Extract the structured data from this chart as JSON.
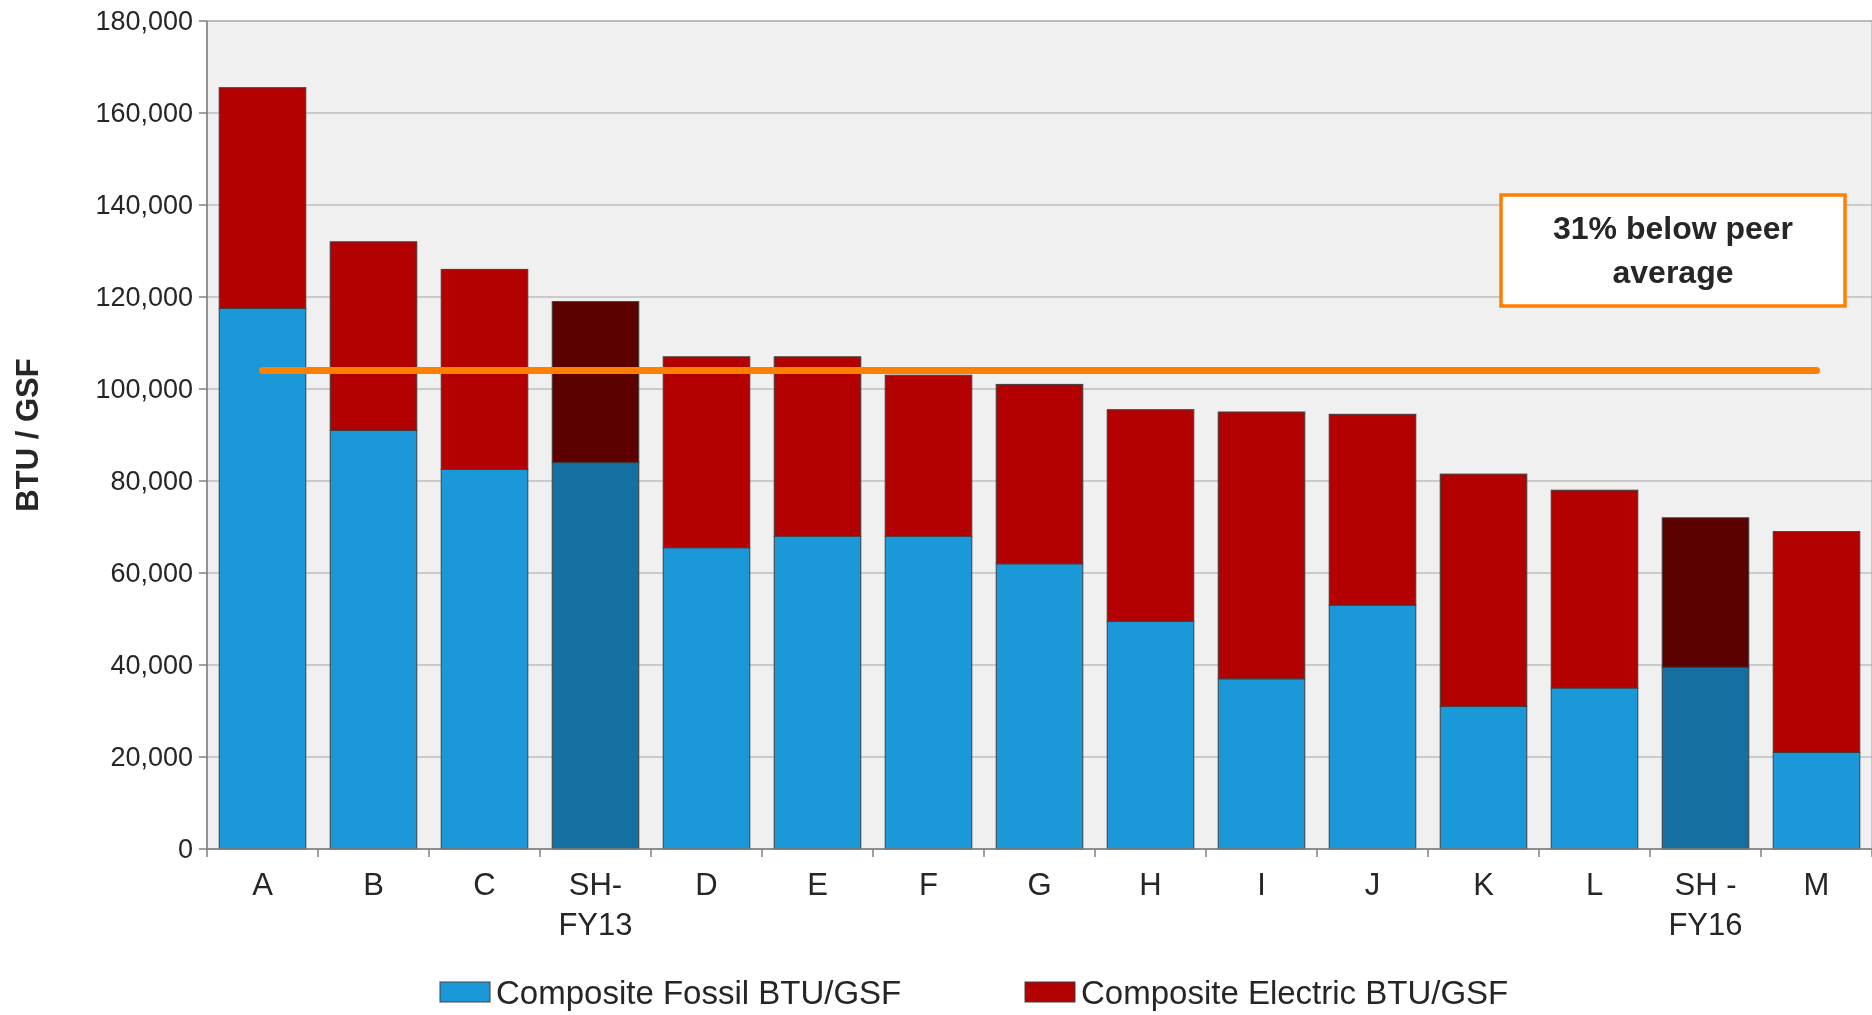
{
  "chart_data": {
    "type": "bar",
    "stacked": true,
    "ylabel": "BTU / GSF",
    "categories": [
      "A",
      "B",
      "C",
      "SH-FY13",
      "D",
      "E",
      "F",
      "G",
      "H",
      "I",
      "J",
      "K",
      "L",
      "SH - FY16",
      "M"
    ],
    "series": [
      {
        "name": "Composite Fossil BTU/GSF",
        "color": "#1b98d8",
        "colors": [
          "#1b98d8",
          "#1b98d8",
          "#1b98d8",
          "#1470a0",
          "#1b98d8",
          "#1b98d8",
          "#1b98d8",
          "#1b98d8",
          "#1b98d8",
          "#1b98d8",
          "#1b98d8",
          "#1b98d8",
          "#1b98d8",
          "#1470a0",
          "#1b98d8"
        ],
        "values": [
          117500,
          91000,
          82500,
          84000,
          65500,
          68000,
          68000,
          62000,
          49500,
          37000,
          53000,
          31000,
          35000,
          39500,
          21000
        ]
      },
      {
        "name": "Composite Electric BTU/GSF",
        "color": "#b30000",
        "colors": [
          "#b30000",
          "#b30000",
          "#b30000",
          "#5c0000",
          "#b30000",
          "#b30000",
          "#b30000",
          "#b30000",
          "#b30000",
          "#b30000",
          "#b30000",
          "#b30000",
          "#b30000",
          "#5c0000",
          "#b30000"
        ],
        "values": [
          48000,
          41000,
          43500,
          35000,
          41500,
          39000,
          35000,
          39000,
          46000,
          58000,
          41500,
          50500,
          43000,
          32500,
          48000
        ]
      }
    ],
    "ylim": [
      0,
      180000
    ],
    "yticks": [
      {
        "value": 0,
        "label": "0"
      },
      {
        "value": 20000,
        "label": "20,000"
      },
      {
        "value": 40000,
        "label": "40,000"
      },
      {
        "value": 60000,
        "label": "60,000"
      },
      {
        "value": 80000,
        "label": "80,000"
      },
      {
        "value": 100000,
        "label": "100,000"
      },
      {
        "value": 120000,
        "label": "120,000"
      },
      {
        "value": 140000,
        "label": "140,000"
      },
      {
        "value": 160000,
        "label": "160,000"
      },
      {
        "value": 180000,
        "label": "180,000"
      }
    ],
    "grid": "y",
    "legend": "bottom",
    "ref_lines": [
      {
        "axis": "y",
        "value": 104000,
        "color": "#ff7f00"
      }
    ],
    "annotations": [
      "31% below peer average"
    ]
  }
}
